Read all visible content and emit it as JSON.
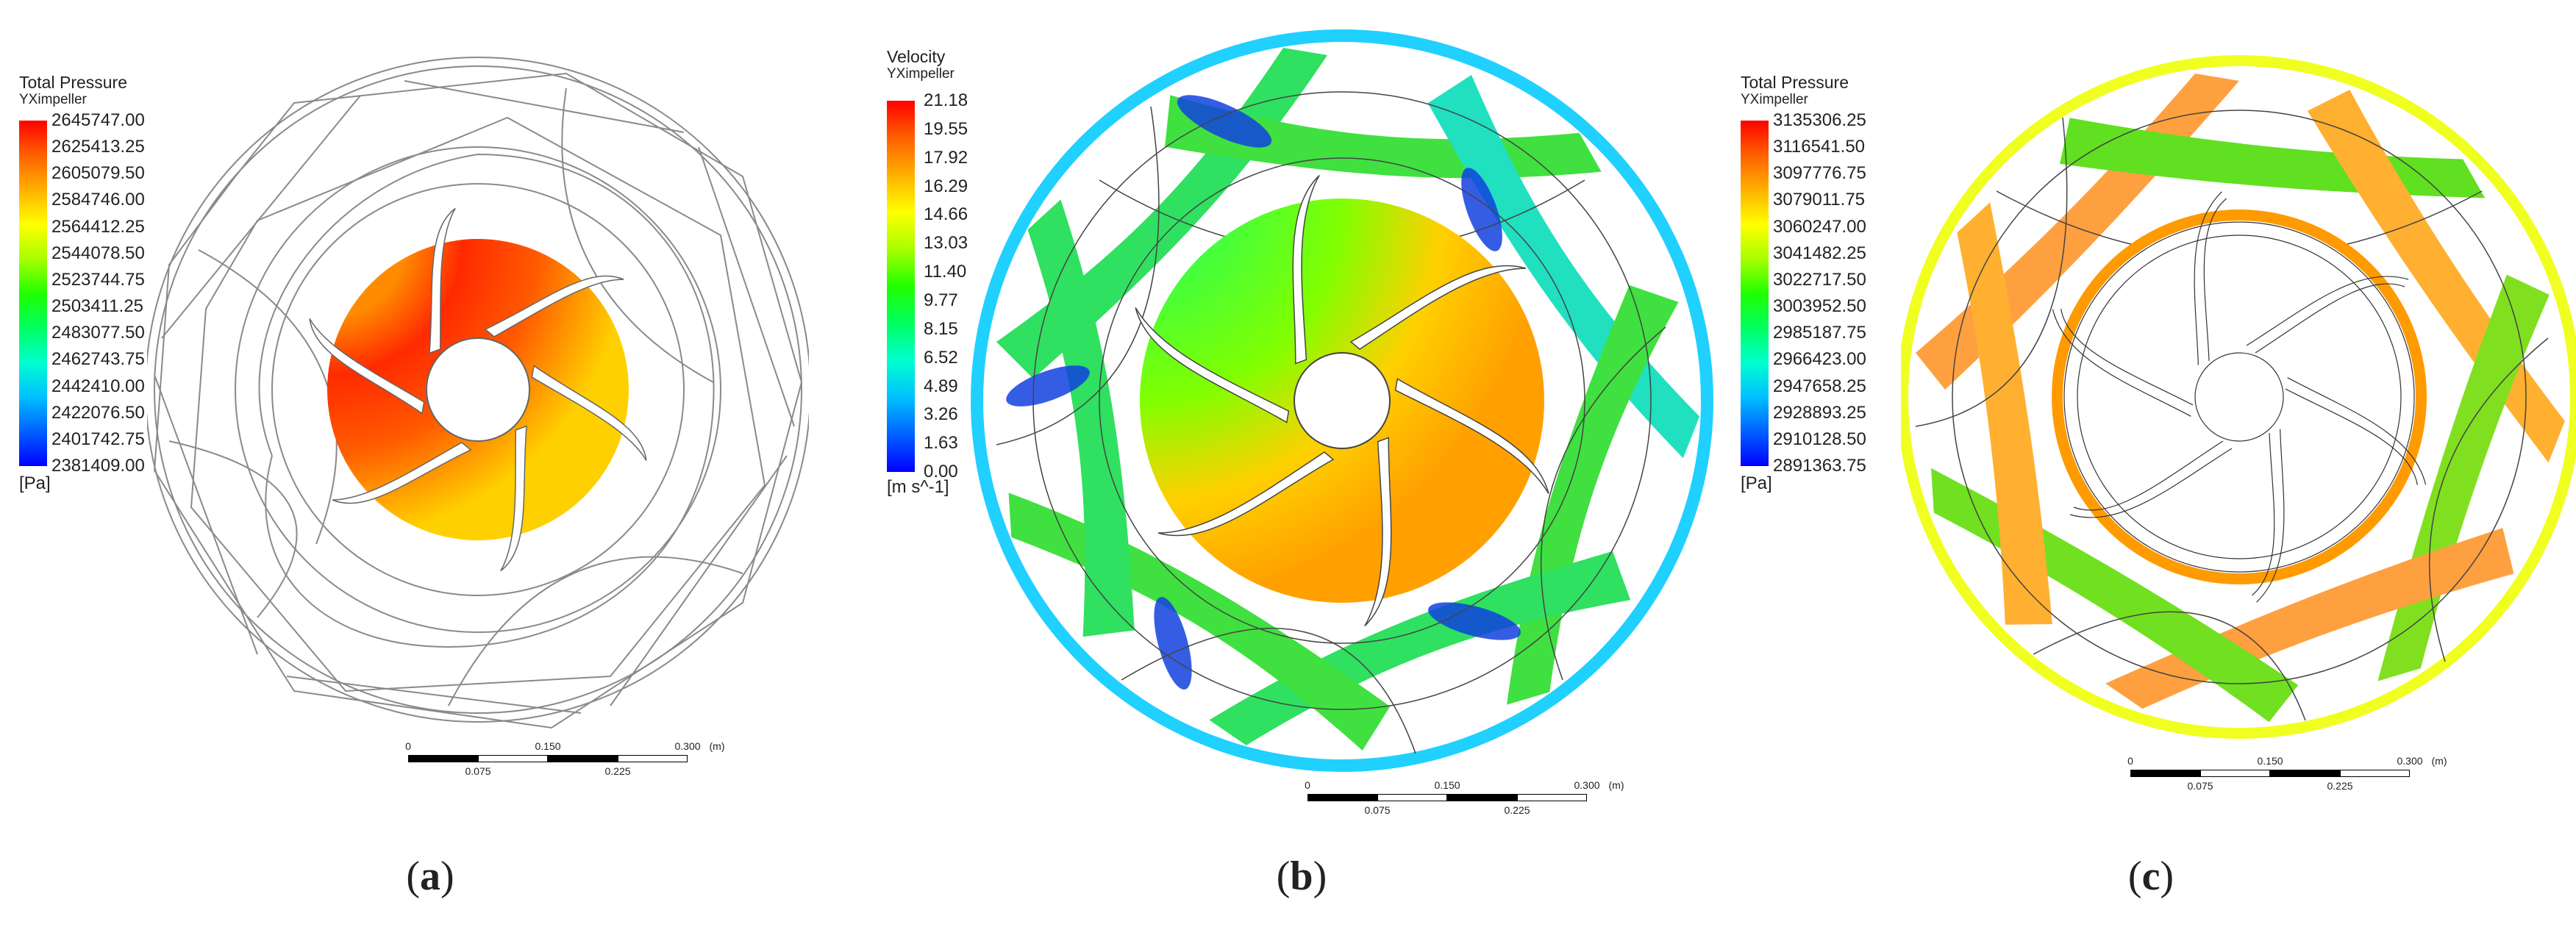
{
  "panels": [
    {
      "id": "a",
      "caption_letter": "a",
      "legend": {
        "title": "Total Pressure",
        "subtitle": "YXimpeller",
        "unit": "[Pa]",
        "ticks": [
          "2645747.00",
          "2625413.25",
          "2605079.50",
          "2584746.00",
          "2564412.25",
          "2544078.50",
          "2523744.75",
          "2503411.25",
          "2483077.50",
          "2462743.75",
          "2442410.00",
          "2422076.50",
          "2401742.75",
          "2381409.00"
        ]
      },
      "scalebar": {
        "labels_top": [
          "0",
          "0.150",
          "0.300"
        ],
        "labels_bottom": [
          "0.075",
          "0.225"
        ],
        "unit": "(m)"
      }
    },
    {
      "id": "b",
      "caption_letter": "b",
      "legend": {
        "title": "Velocity",
        "subtitle": "YXimpeller",
        "unit": "[m s^-1]",
        "ticks": [
          "21.18",
          "19.55",
          "17.92",
          "16.29",
          "14.66",
          "13.03",
          "11.40",
          "9.77",
          "8.15",
          "6.52",
          "4.89",
          "3.26",
          "1.63",
          "0.00"
        ]
      },
      "scalebar": {
        "labels_top": [
          "0",
          "0.150",
          "0.300"
        ],
        "labels_bottom": [
          "0.075",
          "0.225"
        ],
        "unit": "(m)"
      }
    },
    {
      "id": "c",
      "caption_letter": "c",
      "legend": {
        "title": "Total Pressure",
        "subtitle": "YXimpeller",
        "unit": "[Pa]",
        "ticks": [
          "3135306.25",
          "3116541.50",
          "3097776.75",
          "3079011.75",
          "3060247.00",
          "3041482.25",
          "3022717.50",
          "3003952.50",
          "2985187.75",
          "2966423.00",
          "2947658.25",
          "2928893.25",
          "2910128.50",
          "2891363.75"
        ]
      },
      "scalebar": {
        "labels_top": [
          "0",
          "0.150",
          "0.300"
        ],
        "labels_bottom": [
          "0.075",
          "0.225"
        ],
        "unit": "(m)"
      }
    }
  ],
  "colors": {
    "rainbow": [
      "#0000ff",
      "#0060ff",
      "#00c0ff",
      "#00ffc0",
      "#00ff40",
      "#60ff00",
      "#c0ff00",
      "#ffff00",
      "#ffc000",
      "#ff8000",
      "#ff3000",
      "#ff0000"
    ],
    "line": "#555555"
  }
}
